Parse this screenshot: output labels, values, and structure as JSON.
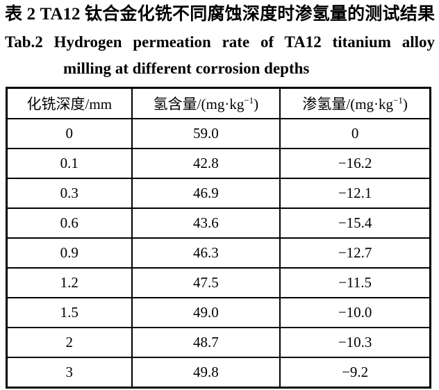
{
  "title": {
    "zh": "表 2  TA12 钛合金化铣不同腐蚀深度时渗氢量的测试结果",
    "en_line1": "Tab.2  Hydrogen permeation rate of TA12 titanium alloy",
    "en_line2": "milling at different corrosion depths"
  },
  "table": {
    "headers": [
      {
        "pre": "化铣深度/mm",
        "sup": "",
        "post": ""
      },
      {
        "pre": "氢含量/(mg·kg",
        "sup": "−1",
        "post": ")"
      },
      {
        "pre": "渗氢量/(mg·kg",
        "sup": "−1",
        "post": ")"
      }
    ],
    "rows": [
      [
        "0",
        "59.0",
        "0"
      ],
      [
        "0.1",
        "42.8",
        "−16.2"
      ],
      [
        "0.3",
        "46.9",
        "−12.1"
      ],
      [
        "0.6",
        "43.6",
        "−15.4"
      ],
      [
        "0.9",
        "46.3",
        "−12.7"
      ],
      [
        "1.2",
        "47.5",
        "−11.5"
      ],
      [
        "1.5",
        "49.0",
        "−10.0"
      ],
      [
        "2",
        "48.7",
        "−10.3"
      ],
      [
        "3",
        "49.8",
        "−9.2"
      ]
    ]
  }
}
